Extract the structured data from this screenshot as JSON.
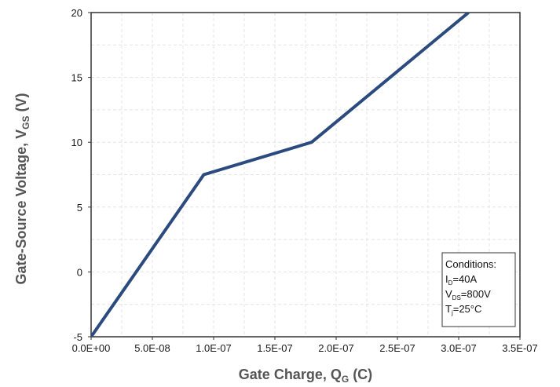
{
  "chart_data": {
    "type": "line",
    "title": "",
    "xlabel": {
      "main": "Gate Charge, Q",
      "sub": "G",
      "suffix": " (C)"
    },
    "ylabel": {
      "main": "Gate-Source Voltage, V",
      "sub": "GS",
      "suffix": " (V)"
    },
    "xlim": [
      0,
      3.5e-07
    ],
    "ylim": [
      -5,
      20
    ],
    "x_ticks": [
      0,
      5e-08,
      1e-07,
      1.5e-07,
      2e-07,
      2.5e-07,
      3e-07,
      3.5e-07
    ],
    "x_tick_labels": [
      "0.0E+00",
      "5.0E-08",
      "1.0E-07",
      "1.5E-07",
      "2.0E-07",
      "2.5E-07",
      "3.0E-07",
      "3.5E-07"
    ],
    "y_ticks": [
      -5,
      0,
      5,
      10,
      15,
      20
    ],
    "y_tick_labels": [
      "-5",
      "0",
      "5",
      "10",
      "15",
      "20"
    ],
    "grid": true,
    "series": [
      {
        "color": "#2b4a7e",
        "x": [
          0,
          9.2e-08,
          1.8e-07,
          3.08e-07
        ],
        "y": [
          -5,
          7.5,
          10,
          20
        ]
      }
    ],
    "annotation": {
      "title": "Conditions:",
      "lines": [
        {
          "main": "I",
          "sub": "D",
          "rest": "=40A"
        },
        {
          "main": "V",
          "sub": "DS",
          "rest": "=800V"
        },
        {
          "main": "T",
          "sub": "j",
          "rest": "=25°C"
        }
      ]
    }
  }
}
